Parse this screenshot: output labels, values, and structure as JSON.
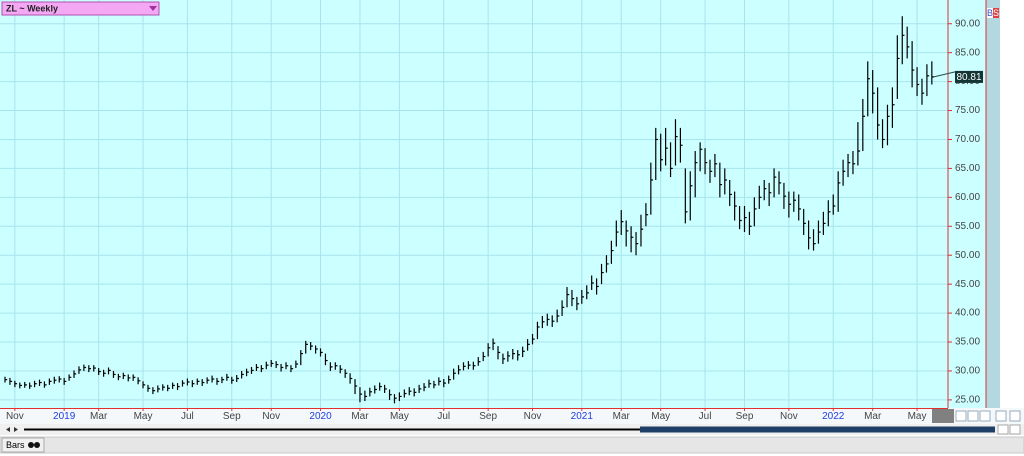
{
  "chart_data": {
    "type": "hlc",
    "title": "ZL ~ Weekly",
    "categories": [
      null,
      null,
      "Nov",
      null,
      null,
      null,
      null,
      null,
      null,
      null,
      null,
      null,
      "2019",
      null,
      null,
      null,
      null,
      null,
      null,
      "Mar",
      null,
      null,
      null,
      null,
      null,
      null,
      null,
      null,
      "May",
      null,
      null,
      null,
      null,
      null,
      null,
      null,
      null,
      "Jul",
      null,
      null,
      null,
      null,
      null,
      null,
      null,
      null,
      "Sep",
      null,
      null,
      null,
      null,
      null,
      null,
      null,
      "Nov",
      null,
      null,
      null,
      null,
      null,
      null,
      null,
      null,
      null,
      "2020",
      null,
      null,
      null,
      null,
      null,
      null,
      null,
      "Mar",
      null,
      null,
      null,
      null,
      null,
      null,
      null,
      "May",
      null,
      null,
      null,
      null,
      null,
      null,
      null,
      null,
      "Jul",
      null,
      null,
      null,
      null,
      null,
      null,
      null,
      null,
      "Sep",
      null,
      null,
      null,
      null,
      null,
      null,
      null,
      null,
      "Nov",
      null,
      null,
      null,
      null,
      null,
      null,
      null,
      null,
      null,
      "2021",
      null,
      null,
      null,
      null,
      null,
      null,
      null,
      "Mar",
      null,
      null,
      null,
      null,
      null,
      null,
      null,
      "May",
      null,
      null,
      null,
      null,
      null,
      null,
      null,
      null,
      "Jul",
      null,
      null,
      null,
      null,
      null,
      null,
      null,
      "Sep",
      null,
      null,
      null,
      null,
      null,
      null,
      null,
      null,
      "Nov",
      null,
      null,
      null,
      null,
      null,
      null,
      null,
      null,
      "2022",
      null,
      null,
      null,
      null,
      null,
      null,
      null,
      "Mar",
      null,
      null,
      null,
      null,
      null,
      null,
      null,
      null,
      "May",
      null,
      null,
      null
    ],
    "high": [
      29.0,
      28.8,
      28.3,
      28.0,
      28.1,
      28.0,
      28.3,
      28.5,
      28.2,
      28.7,
      29.0,
      29.1,
      28.8,
      29.4,
      30.1,
      30.8,
      31.1,
      31.0,
      31.0,
      30.5,
      30.2,
      30.6,
      30.0,
      29.5,
      29.7,
      29.4,
      29.4,
      28.9,
      28.2,
      27.6,
      27.2,
      27.5,
      27.7,
      27.6,
      28.0,
      27.9,
      28.4,
      28.7,
      28.4,
      28.7,
      28.6,
      28.9,
      29.2,
      28.8,
      29.0,
      29.5,
      29.0,
      29.3,
      30.0,
      30.4,
      30.7,
      31.2,
      31.0,
      31.6,
      31.9,
      31.7,
      31.2,
      31.5,
      31.0,
      31.8,
      33.6,
      35.2,
      35.0,
      34.4,
      33.9,
      33.0,
      31.5,
      31.5,
      31.0,
      30.3,
      29.6,
      28.6,
      27.2,
      26.6,
      27.1,
      27.5,
      28.0,
      27.6,
      26.8,
      26.0,
      26.3,
      26.8,
      27.2,
      27.0,
      27.6,
      27.9,
      28.5,
      28.3,
      28.9,
      28.6,
      29.2,
      30.4,
      31.0,
      31.5,
      31.7,
      31.6,
      32.4,
      33.3,
      34.8,
      35.6,
      34.3,
      33.0,
      33.4,
      33.8,
      33.6,
      34.2,
      35.5,
      36.4,
      38.5,
      39.5,
      39.9,
      39.6,
      40.6,
      42.2,
      44.5,
      44.0,
      42.8,
      44.0,
      44.8,
      46.5,
      46.0,
      48.5,
      50.0,
      52.5,
      56.0,
      57.8,
      56.0,
      55.0,
      54.0,
      57.0,
      59.0,
      66.0,
      72.0,
      71.0,
      72.0,
      69.5,
      73.5,
      72.0,
      65.0,
      64.5,
      68.0,
      69.5,
      68.5,
      66.5,
      67.5,
      66.0,
      65.0,
      63.0,
      61.0,
      58.5,
      58.5,
      57.5,
      60.0,
      62.0,
      63.0,
      62.5,
      65.0,
      64.5,
      62.5,
      61.0,
      61.0,
      60.5,
      58.0,
      56.0,
      54.5,
      56.0,
      57.5,
      59.5,
      60.5,
      64.5,
      66.5,
      67.5,
      68.0,
      73.0,
      77.0,
      83.5,
      82.0,
      79.0,
      73.5,
      76.0,
      79.0,
      88.0,
      91.3,
      89.5,
      87.0,
      82.5,
      80.5,
      83.0,
      83.5
    ],
    "low": [
      28.0,
      27.6,
      27.2,
      27.0,
      27.1,
      26.9,
      27.2,
      27.4,
      27.1,
      27.6,
      27.8,
      28.0,
      27.6,
      28.3,
      28.8,
      29.5,
      30.0,
      29.8,
      29.9,
      29.3,
      29.0,
      29.4,
      28.8,
      28.4,
      28.6,
      28.2,
      28.3,
      27.7,
      27.0,
      26.4,
      26.0,
      26.3,
      26.6,
      26.5,
      26.9,
      26.7,
      27.3,
      27.5,
      27.2,
      27.6,
      27.4,
      27.8,
      28.0,
      27.6,
      27.9,
      28.3,
      27.8,
      28.1,
      28.7,
      29.1,
      29.5,
      30.0,
      29.8,
      30.3,
      30.7,
      30.5,
      29.9,
      30.3,
      29.8,
      30.5,
      31.0,
      33.0,
      33.6,
      33.0,
      32.5,
      31.0,
      30.0,
      30.2,
      29.6,
      28.8,
      27.8,
      26.0,
      24.6,
      24.8,
      25.6,
      26.1,
      26.6,
      26.2,
      25.0,
      24.4,
      24.8,
      25.4,
      25.8,
      25.6,
      26.2,
      26.5,
      27.1,
      27.0,
      27.5,
      27.2,
      27.8,
      28.5,
      29.4,
      30.1,
      30.3,
      30.2,
      30.9,
      31.7,
      32.5,
      33.6,
      32.0,
      31.2,
      31.6,
      32.0,
      31.8,
      32.4,
      33.5,
      34.6,
      35.5,
      37.4,
      37.8,
      37.6,
      38.4,
      39.5,
      41.0,
      41.2,
      40.5,
      41.6,
      42.4,
      44.0,
      43.2,
      45.0,
      47.0,
      48.5,
      51.5,
      53.5,
      51.5,
      50.5,
      50.0,
      51.5,
      55.0,
      57.0,
      63.0,
      64.5,
      65.5,
      63.5,
      65.5,
      66.0,
      55.5,
      56.0,
      60.0,
      64.5,
      64.0,
      62.5,
      63.5,
      60.0,
      60.5,
      58.5,
      56.0,
      54.5,
      54.0,
      53.5,
      55.0,
      58.0,
      59.5,
      58.5,
      60.0,
      60.5,
      58.0,
      56.5,
      57.5,
      56.0,
      53.5,
      51.0,
      50.8,
      52.0,
      53.5,
      55.0,
      57.0,
      57.5,
      62.0,
      63.5,
      64.0,
      65.5,
      68.0,
      74.0,
      74.5,
      70.0,
      68.5,
      69.0,
      72.0,
      77.0,
      83.0,
      84.0,
      79.0,
      77.5,
      76.0,
      77.5,
      79.5
    ],
    "close": [
      28.5,
      28.2,
      27.8,
      27.5,
      27.6,
      27.4,
      27.8,
      28.0,
      27.6,
      28.2,
      28.4,
      28.6,
      28.2,
      28.9,
      29.5,
      30.2,
      30.6,
      30.4,
      30.5,
      29.9,
      29.6,
      30.1,
      29.4,
      29.0,
      29.2,
      28.8,
      28.9,
      28.3,
      27.6,
      27.0,
      26.6,
      26.9,
      27.2,
      27.0,
      27.5,
      27.3,
      27.9,
      28.1,
      27.8,
      28.2,
      28.0,
      28.4,
      28.6,
      28.2,
      28.5,
      28.9,
      28.4,
      28.7,
      29.4,
      29.8,
      30.1,
      30.6,
      30.4,
      31.0,
      31.3,
      31.1,
      30.6,
      30.9,
      30.4,
      31.2,
      33.0,
      34.6,
      34.3,
      33.8,
      33.2,
      31.8,
      30.7,
      30.9,
      30.3,
      29.6,
      28.7,
      27.4,
      26.0,
      25.6,
      26.4,
      26.8,
      27.3,
      26.9,
      25.9,
      25.3,
      25.6,
      26.1,
      26.5,
      26.3,
      26.9,
      27.2,
      27.8,
      27.6,
      28.2,
      27.9,
      28.5,
      29.6,
      30.2,
      30.8,
      31.0,
      30.9,
      31.6,
      32.5,
      34.0,
      34.8,
      33.2,
      32.1,
      32.6,
      33.0,
      32.8,
      33.4,
      34.6,
      35.5,
      37.6,
      38.5,
      38.9,
      38.6,
      39.5,
      41.0,
      43.2,
      42.5,
      41.6,
      42.8,
      43.5,
      45.2,
      44.6,
      47.0,
      48.5,
      50.8,
      54.0,
      55.8,
      54.2,
      53.1,
      52.0,
      54.5,
      57.0,
      63.0,
      70.0,
      66.5,
      68.5,
      65.0,
      70.5,
      69.0,
      57.5,
      62.0,
      66.0,
      68.3,
      66.0,
      64.5,
      65.8,
      62.2,
      63.0,
      60.5,
      58.5,
      56.0,
      56.5,
      55.0,
      58.0,
      60.0,
      61.5,
      60.8,
      63.5,
      62.5,
      60.2,
      58.8,
      59.5,
      58.0,
      55.5,
      53.0,
      52.0,
      54.0,
      55.5,
      57.5,
      58.5,
      62.5,
      64.5,
      66.0,
      65.8,
      68.0,
      74.0,
      80.5,
      78.0,
      72.5,
      70.0,
      74.0,
      76.0,
      84.0,
      88.0,
      86.0,
      82.0,
      79.5,
      78.0,
      81.0,
      80.81
    ],
    "last_price_label": "80.81",
    "color": "#000000",
    "background": "#ccffff",
    "ylim": [
      23.6,
      94.1
    ],
    "yticks": [
      {
        "value": 25,
        "label": "25.00"
      },
      {
        "value": 30,
        "label": "30.00"
      },
      {
        "value": 35,
        "label": "35.00"
      },
      {
        "value": 40,
        "label": "40.00"
      },
      {
        "value": 45,
        "label": "45.00"
      },
      {
        "value": 50,
        "label": "50.00"
      },
      {
        "value": 55,
        "label": "55.00"
      },
      {
        "value": 60,
        "label": "60.00"
      },
      {
        "value": 65,
        "label": "65.00"
      },
      {
        "value": 70,
        "label": "70.00"
      },
      {
        "value": 75,
        "label": "75.00"
      },
      {
        "value": 80,
        "label": "80.00"
      },
      {
        "value": 85,
        "label": "85.00"
      },
      {
        "value": 90,
        "label": "90.00"
      }
    ],
    "grid": true
  },
  "ui": {
    "footer_label": "Bars",
    "buy_label": "B",
    "sell_label": "S"
  }
}
